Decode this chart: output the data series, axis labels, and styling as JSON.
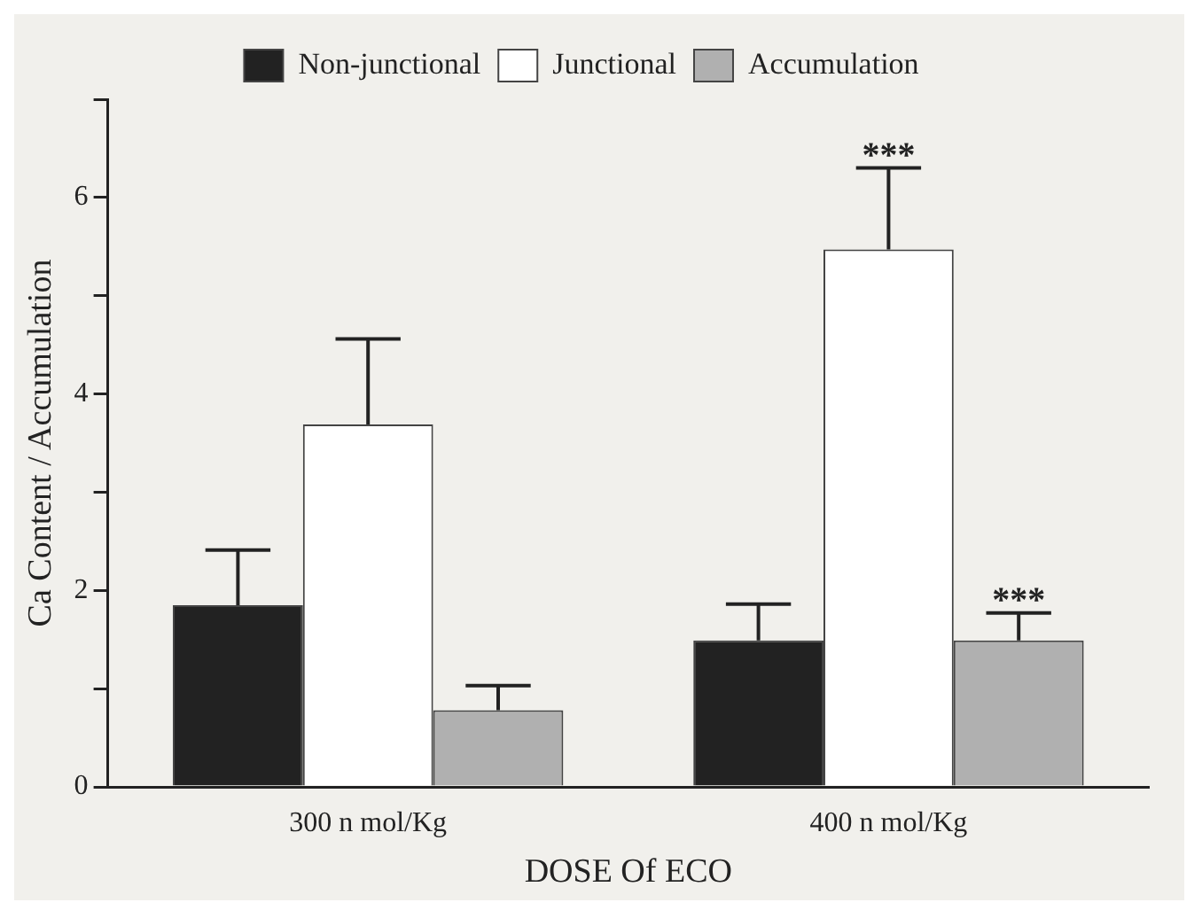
{
  "chart_data": {
    "type": "bar",
    "xlabel": "DOSE Of ECO",
    "ylabel": "Ca Content / Accumulation",
    "categories": [
      "300 n mol/Kg",
      "400 n mol/Kg"
    ],
    "series": [
      {
        "name": "Non-junctional",
        "color": "#222222",
        "values": [
          1.85,
          1.49
        ],
        "errors": [
          [
            1.85,
            2.41
          ],
          [
            1.49,
            1.86
          ]
        ]
      },
      {
        "name": "Junctional",
        "color": "#ffffff",
        "values": [
          3.69,
          5.47
        ],
        "errors": [
          [
            3.69,
            4.56
          ],
          [
            5.47,
            6.3
          ]
        ]
      },
      {
        "name": "Accumulation",
        "color": "#b0b0b0",
        "values": [
          0.78,
          1.49
        ],
        "errors": [
          [
            0.78,
            1.03
          ],
          [
            1.49,
            1.77
          ]
        ]
      }
    ],
    "ylim": [
      0,
      7
    ],
    "yticks": [
      0,
      {
        "value": 1,
        "label": null
      },
      2,
      {
        "value": 3,
        "label": null
      },
      4,
      {
        "value": 5,
        "label": null
      },
      6,
      {
        "value": 7,
        "label": null
      }
    ],
    "annotations": [
      {
        "text": "***",
        "x": "400 n mol/Kg",
        "y": 6.3
      },
      "***"
    ],
    "legend": "top",
    "grid": false
  }
}
